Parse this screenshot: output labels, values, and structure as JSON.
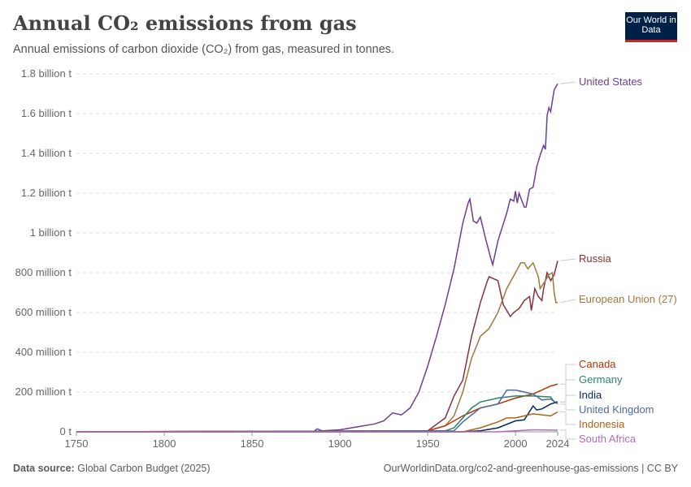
{
  "header": {
    "title": "Annual CO₂ emissions from gas",
    "subtitle": "Annual emissions of carbon dioxide (CO₂) from gas, measured in tonnes.",
    "logo": "Our World in Data"
  },
  "footer": {
    "source_label": "Data source:",
    "source": "Global Carbon Budget (2025)",
    "url": "OurWorldinData.org/co2-and-greenhouse-gas-emissions | CC BY"
  },
  "chart_data": {
    "type": "line",
    "title": "Annual CO₂ emissions from gas",
    "xlim": [
      1750,
      2024
    ],
    "ylim": [
      0,
      1800000000
    ],
    "x_ticks": [
      1750,
      1800,
      1850,
      1900,
      1950,
      2000,
      2024
    ],
    "y_ticks": [
      {
        "v": 0,
        "label": "0 t"
      },
      {
        "v": 200000000,
        "label": "200 million t"
      },
      {
        "v": 400000000,
        "label": "400 million t"
      },
      {
        "v": 600000000,
        "label": "600 million t"
      },
      {
        "v": 800000000,
        "label": "800 million t"
      },
      {
        "v": 1000000000,
        "label": "1 billion t"
      },
      {
        "v": 1200000000,
        "label": "1.2 billion t"
      },
      {
        "v": 1400000000,
        "label": "1.4 billion t"
      },
      {
        "v": 1600000000,
        "label": "1.6 billion t"
      },
      {
        "v": 1800000000,
        "label": "1.8 billion t"
      }
    ],
    "grid": "horizontal dashed",
    "legend": "right, end-of-line labels",
    "value_unit": "million t",
    "series": [
      {
        "name": "United States",
        "color": "#6d3e91",
        "points": [
          [
            1750,
            0
          ],
          [
            1885,
            0
          ],
          [
            1887,
            15
          ],
          [
            1890,
            5
          ],
          [
            1900,
            10
          ],
          [
            1910,
            25
          ],
          [
            1920,
            40
          ],
          [
            1925,
            55
          ],
          [
            1930,
            95
          ],
          [
            1935,
            85
          ],
          [
            1940,
            120
          ],
          [
            1945,
            200
          ],
          [
            1950,
            330
          ],
          [
            1955,
            480
          ],
          [
            1960,
            640
          ],
          [
            1965,
            820
          ],
          [
            1970,
            1050
          ],
          [
            1973,
            1150
          ],
          [
            1974,
            1170
          ],
          [
            1976,
            1060
          ],
          [
            1978,
            1050
          ],
          [
            1980,
            1080
          ],
          [
            1983,
            970
          ],
          [
            1986,
            870
          ],
          [
            1987,
            840
          ],
          [
            1990,
            960
          ],
          [
            1995,
            1100
          ],
          [
            1997,
            1170
          ],
          [
            1999,
            1160
          ],
          [
            2000,
            1210
          ],
          [
            2001,
            1150
          ],
          [
            2002,
            1200
          ],
          [
            2005,
            1130
          ],
          [
            2006,
            1130
          ],
          [
            2008,
            1220
          ],
          [
            2010,
            1230
          ],
          [
            2012,
            1330
          ],
          [
            2014,
            1390
          ],
          [
            2016,
            1440
          ],
          [
            2017,
            1420
          ],
          [
            2018,
            1590
          ],
          [
            2019,
            1630
          ],
          [
            2020,
            1610
          ],
          [
            2022,
            1720
          ],
          [
            2024,
            1750
          ]
        ]
      },
      {
        "name": "Russia",
        "color": "#883039",
        "points": [
          [
            1750,
            0
          ],
          [
            1950,
            5
          ],
          [
            1960,
            70
          ],
          [
            1965,
            180
          ],
          [
            1970,
            260
          ],
          [
            1975,
            480
          ],
          [
            1980,
            650
          ],
          [
            1984,
            760
          ],
          [
            1985,
            780
          ],
          [
            1990,
            760
          ],
          [
            1993,
            640
          ],
          [
            1997,
            580
          ],
          [
            1999,
            600
          ],
          [
            2002,
            620
          ],
          [
            2005,
            660
          ],
          [
            2008,
            680
          ],
          [
            2009,
            610
          ],
          [
            2011,
            720
          ],
          [
            2013,
            680
          ],
          [
            2015,
            660
          ],
          [
            2016,
            720
          ],
          [
            2018,
            800
          ],
          [
            2020,
            760
          ],
          [
            2022,
            790
          ],
          [
            2024,
            860
          ]
        ]
      },
      {
        "name": "European Union (27)",
        "color": "#a2773b",
        "points": [
          [
            1750,
            0
          ],
          [
            1950,
            5
          ],
          [
            1960,
            30
          ],
          [
            1965,
            80
          ],
          [
            1970,
            200
          ],
          [
            1975,
            370
          ],
          [
            1980,
            480
          ],
          [
            1985,
            520
          ],
          [
            1990,
            600
          ],
          [
            1995,
            720
          ],
          [
            2000,
            800
          ],
          [
            2003,
            850
          ],
          [
            2005,
            850
          ],
          [
            2007,
            820
          ],
          [
            2010,
            850
          ],
          [
            2013,
            780
          ],
          [
            2014,
            720
          ],
          [
            2017,
            760
          ],
          [
            2019,
            790
          ],
          [
            2021,
            800
          ],
          [
            2022,
            700
          ],
          [
            2023,
            650
          ],
          [
            2024,
            650
          ]
        ]
      },
      {
        "name": "Canada",
        "color": "#b13507",
        "points": [
          [
            1750,
            0
          ],
          [
            1950,
            5
          ],
          [
            1960,
            30
          ],
          [
            1970,
            80
          ],
          [
            1980,
            120
          ],
          [
            1990,
            140
          ],
          [
            2000,
            170
          ],
          [
            2010,
            190
          ],
          [
            2020,
            230
          ],
          [
            2024,
            240
          ]
        ]
      },
      {
        "name": "Germany",
        "color": "#2c8465",
        "points": [
          [
            1750,
            0
          ],
          [
            1960,
            5
          ],
          [
            1965,
            20
          ],
          [
            1970,
            70
          ],
          [
            1975,
            120
          ],
          [
            1980,
            150
          ],
          [
            1990,
            170
          ],
          [
            2000,
            180
          ],
          [
            2010,
            180
          ],
          [
            2020,
            175
          ],
          [
            2022,
            150
          ],
          [
            2024,
            150
          ]
        ]
      },
      {
        "name": "India",
        "color": "#00295b",
        "points": [
          [
            1750,
            0
          ],
          [
            1970,
            0
          ],
          [
            1980,
            5
          ],
          [
            1990,
            20
          ],
          [
            2000,
            55
          ],
          [
            2005,
            60
          ],
          [
            2010,
            130
          ],
          [
            2012,
            110
          ],
          [
            2015,
            115
          ],
          [
            2020,
            140
          ],
          [
            2024,
            150
          ]
        ]
      },
      {
        "name": "United Kingdom",
        "color": "#4c6a9c",
        "points": [
          [
            1750,
            0
          ],
          [
            1965,
            5
          ],
          [
            1970,
            50
          ],
          [
            1980,
            120
          ],
          [
            1990,
            140
          ],
          [
            1995,
            210
          ],
          [
            2000,
            210
          ],
          [
            2005,
            200
          ],
          [
            2010,
            190
          ],
          [
            2015,
            160
          ],
          [
            2020,
            165
          ],
          [
            2024,
            140
          ]
        ]
      },
      {
        "name": "Indonesia",
        "color": "#b16214",
        "points": [
          [
            1750,
            0
          ],
          [
            1970,
            0
          ],
          [
            1980,
            20
          ],
          [
            1990,
            50
          ],
          [
            1995,
            70
          ],
          [
            2000,
            70
          ],
          [
            2005,
            80
          ],
          [
            2010,
            90
          ],
          [
            2020,
            80
          ],
          [
            2024,
            100
          ]
        ]
      },
      {
        "name": "South Africa",
        "color": "#b26cb4",
        "points": [
          [
            1750,
            0
          ],
          [
            1990,
            0
          ],
          [
            2000,
            5
          ],
          [
            2010,
            10
          ],
          [
            2024,
            8
          ]
        ]
      }
    ]
  }
}
